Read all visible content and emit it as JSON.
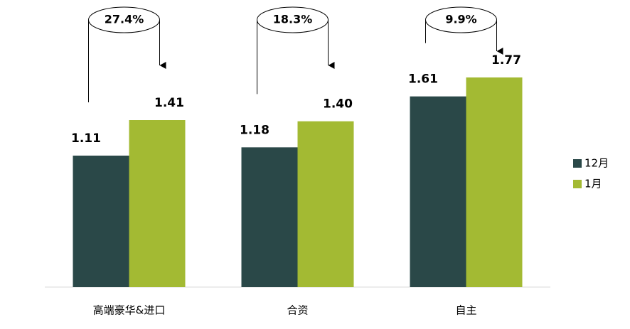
{
  "chart_data": {
    "type": "bar",
    "categories": [
      "高端豪华&进口",
      "合资",
      "自主"
    ],
    "series": [
      {
        "name": "12月",
        "color": "#2a4848",
        "values": [
          1.11,
          1.18,
          1.61
        ],
        "value_labels": [
          "1.11",
          "1.18",
          "1.61"
        ]
      },
      {
        "name": "1月",
        "color": "#a3ba33",
        "values": [
          1.41,
          1.4,
          1.77
        ],
        "value_labels": [
          "1.41",
          "1.40",
          "1.77"
        ]
      }
    ],
    "annotations": [
      "27.4%",
      "18.3%",
      "9.9%"
    ],
    "ylim": [
      0,
      2.4
    ],
    "legend": "right"
  }
}
